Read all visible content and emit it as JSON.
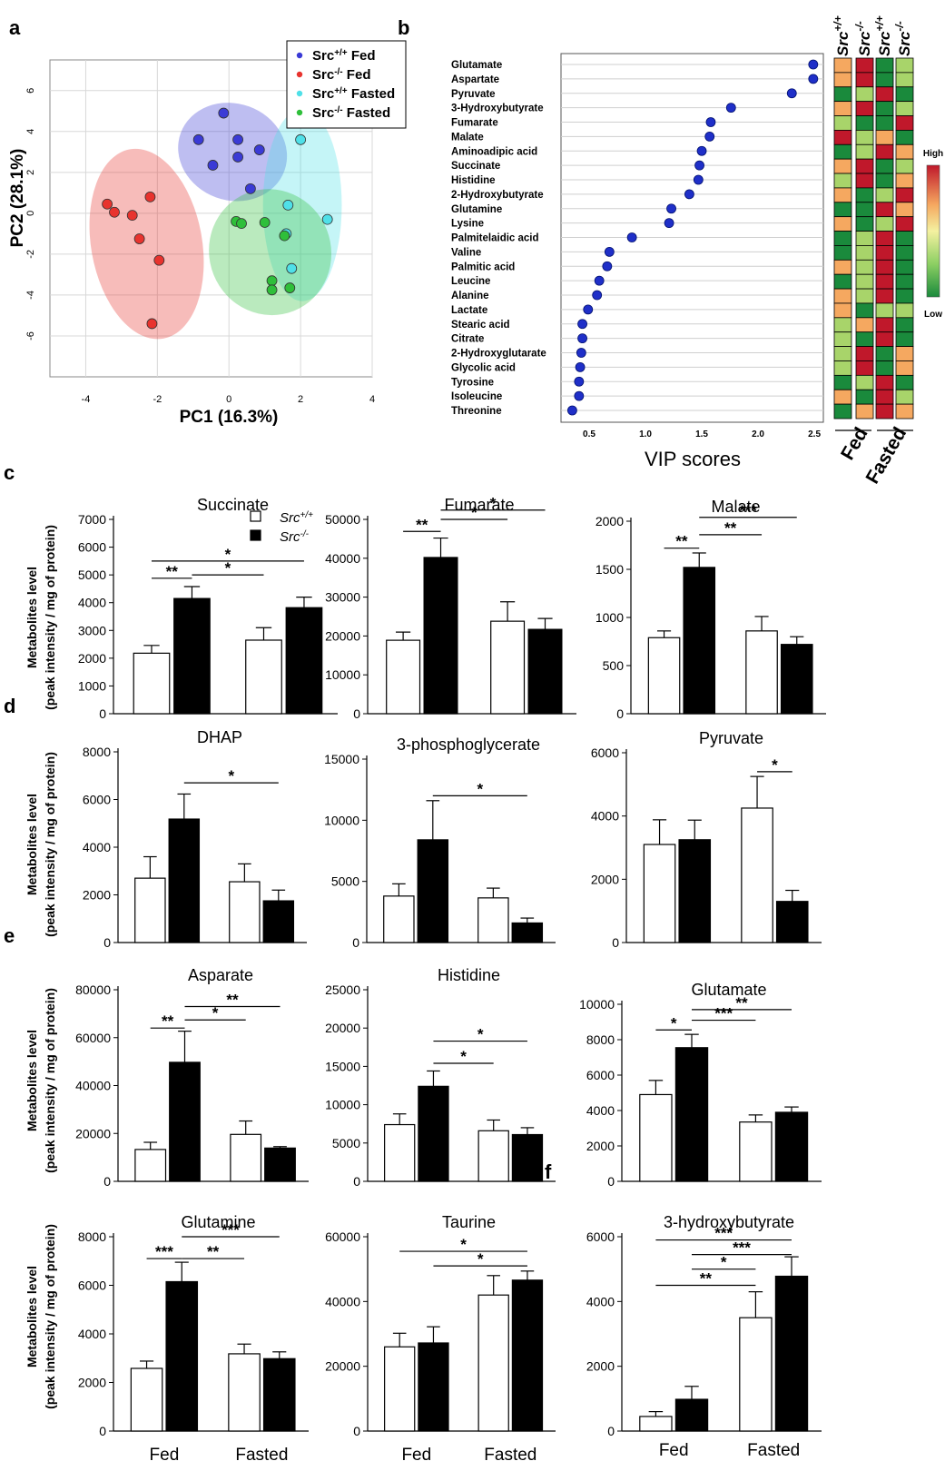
{
  "panel_labels": {
    "a": "a",
    "b": "b",
    "c": "c",
    "d": "d",
    "e": "e",
    "f": "f"
  },
  "colors": {
    "fed_wt": "#3a3ad6",
    "fed_ko": "#e8332e",
    "fasted_wt": "#4fe0e8",
    "fasted_ko": "#2fbf3a",
    "vip": "#1f2fc8",
    "bar_ko": "#000000",
    "bar_wt": "#ffffff"
  },
  "bar_legend": {
    "wt": "Src+/+",
    "ko": "Src-/-"
  },
  "ylabel_line1": "Metabolites  level",
  "ylabel_line2": "(peak intensity / mg of protein)",
  "group_labels": [
    "Fed",
    "Fasted"
  ],
  "chart_data": [
    {
      "id": "pca",
      "type": "scatter",
      "xlabel": "PC1 (16.3%)",
      "ylabel": "PC2 (28.1%)",
      "xlim": [
        -5,
        4
      ],
      "ylim": [
        -8,
        7.5
      ],
      "xticks": [
        -4,
        -2,
        0,
        2,
        4
      ],
      "yticks": [
        6,
        4,
        2,
        0,
        -2,
        -4,
        -6
      ],
      "grid": true,
      "legend_position": "top-right",
      "series": [
        {
          "name": "Src+/+ Fed",
          "color": "#3a3ad6",
          "points": [
            [
              -0.85,
              3.6
            ],
            [
              -0.15,
              4.9
            ],
            [
              0.25,
              3.6
            ],
            [
              0.85,
              3.1
            ],
            [
              -0.45,
              2.35
            ],
            [
              0.25,
              2.75
            ],
            [
              0.6,
              1.2
            ]
          ]
        },
        {
          "name": "Src-/- Fed",
          "color": "#e8332e",
          "points": [
            [
              -3.4,
              0.45
            ],
            [
              -3.2,
              0.05
            ],
            [
              -2.7,
              -0.1
            ],
            [
              -2.5,
              -1.25
            ],
            [
              -2.2,
              0.8
            ],
            [
              -1.95,
              -2.3
            ],
            [
              -2.15,
              -5.4
            ]
          ]
        },
        {
          "name": "Src+/+ Fasted",
          "color": "#4fe0e8",
          "points": [
            [
              2.0,
              3.6
            ],
            [
              1.65,
              0.4
            ],
            [
              2.75,
              -0.3
            ],
            [
              1.6,
              -1.0
            ],
            [
              1.75,
              -2.7
            ]
          ]
        },
        {
          "name": "Src-/- Fasted",
          "color": "#2fbf3a",
          "points": [
            [
              0.2,
              -0.4
            ],
            [
              0.35,
              -0.5
            ],
            [
              1.0,
              -0.45
            ],
            [
              1.55,
              -1.1
            ],
            [
              1.2,
              -3.3
            ],
            [
              1.2,
              -3.75
            ],
            [
              1.7,
              -3.65
            ]
          ]
        }
      ],
      "ellipses": [
        {
          "series": "Src+/+ Fed",
          "cx": 0.1,
          "cy": 3.0,
          "rx": 1.35,
          "ry": 2.7,
          "angle": -70
        },
        {
          "series": "Src-/- Fed",
          "cx": -2.3,
          "cy": -1.5,
          "rx": 1.55,
          "ry": 4.7,
          "angle": -10
        },
        {
          "series": "Src+/+ Fasted",
          "cx": 2.05,
          "cy": 0.4,
          "rx": 1.1,
          "ry": 4.7,
          "angle": 0
        },
        {
          "series": "Src-/- Fasted",
          "cx": 1.15,
          "cy": -1.9,
          "rx": 1.7,
          "ry": 3.1,
          "angle": -22
        }
      ]
    },
    {
      "id": "vip",
      "type": "scatter",
      "xlabel": "VIP scores",
      "xlim": [
        0.25,
        2.58
      ],
      "xticks": [
        0.5,
        1.0,
        1.5,
        2.0,
        2.5
      ],
      "xticklabels": [
        "0.5",
        "1.0",
        "1.5",
        "2.0",
        "2.5"
      ],
      "categories": [
        "Glutamate",
        "Aspartate",
        "Pyruvate",
        "3-Hydroxybutyrate",
        "Fumarate",
        "Malate",
        "Aminoadipic acid",
        "Succinate",
        "Histidine",
        "2-Hydroxybutyrate",
        "Glutamine",
        "Lysine",
        "Palmitelaidic acid",
        "Valine",
        "Palmitic acid",
        "Leucine",
        "Alanine",
        "Lactate",
        "Stearic acid",
        "Citrate",
        "2-Hydroxyglutarate",
        "Glycolic acid",
        "Tyrosine",
        "Isoleucine",
        "Threonine"
      ],
      "values": [
        2.49,
        2.49,
        2.3,
        1.76,
        1.58,
        1.57,
        1.5,
        1.48,
        1.47,
        1.39,
        1.23,
        1.21,
        0.88,
        0.68,
        0.66,
        0.59,
        0.57,
        0.49,
        0.44,
        0.44,
        0.43,
        0.42,
        0.41,
        0.41,
        0.35
      ]
    },
    {
      "id": "heatmap",
      "type": "heatmap",
      "columns": [
        "Src+/+",
        "Src-/-",
        "Src+/+",
        "Src-/-"
      ],
      "column_groups": [
        "Fed",
        "Fasted"
      ],
      "legend_high": "High",
      "legend_low": "Low",
      "palette": {
        "R": "#c0182b",
        "O": "#f5a860",
        "L": "#a8d46a",
        "G": "#1a8a3c",
        "l": "#c9e58a"
      },
      "cells": [
        [
          "O",
          "R",
          "G",
          "L"
        ],
        [
          "O",
          "R",
          "G",
          "L"
        ],
        [
          "G",
          "L",
          "R",
          "G"
        ],
        [
          "O",
          "R",
          "G",
          "L"
        ],
        [
          "L",
          "G",
          "G",
          "R"
        ],
        [
          "R",
          "L",
          "O",
          "G"
        ],
        [
          "G",
          "L",
          "R",
          "O"
        ],
        [
          "O",
          "R",
          "G",
          "L"
        ],
        [
          "L",
          "R",
          "G",
          "O"
        ],
        [
          "O",
          "G",
          "L",
          "R"
        ],
        [
          "G",
          "G",
          "R",
          "O"
        ],
        [
          "O",
          "G",
          "L",
          "R"
        ],
        [
          "G",
          "L",
          "R",
          "G"
        ],
        [
          "G",
          "L",
          "R",
          "G"
        ],
        [
          "O",
          "L",
          "R",
          "G"
        ],
        [
          "G",
          "L",
          "R",
          "G"
        ],
        [
          "O",
          "L",
          "R",
          "G"
        ],
        [
          "O",
          "G",
          "L",
          "L"
        ],
        [
          "L",
          "O",
          "R",
          "G"
        ],
        [
          "L",
          "G",
          "R",
          "G"
        ],
        [
          "L",
          "R",
          "G",
          "O"
        ],
        [
          "L",
          "R",
          "G",
          "O"
        ],
        [
          "G",
          "L",
          "R",
          "G"
        ],
        [
          "O",
          "G",
          "R",
          "L"
        ],
        [
          "G",
          "O",
          "R",
          "O"
        ]
      ]
    },
    {
      "id": "succinate",
      "type": "bar",
      "title": "Succinate",
      "categories": [
        "Fed",
        "Fasted"
      ],
      "series": [
        {
          "name": "Src+/+",
          "values": [
            2180,
            2650
          ],
          "errors": [
            280,
            450
          ]
        },
        {
          "name": "Src-/-",
          "values": [
            4150,
            3820
          ],
          "errors": [
            430,
            380
          ]
        }
      ],
      "ylim": [
        0,
        7000
      ],
      "yticks": [
        0,
        1000,
        2000,
        3000,
        4000,
        5000,
        6000,
        7000
      ],
      "sig": [
        {
          "from": "fed_wt",
          "to": "fed_ko",
          "label": "**",
          "y": 4880
        },
        {
          "from": "fed_ko",
          "to": "fas_wt",
          "label": "*",
          "y": 5000
        },
        {
          "from": "fed_wt",
          "to": "fas_ko",
          "label": "*",
          "y": 5500
        }
      ]
    },
    {
      "id": "fumarate",
      "type": "bar",
      "title": "Fumarate",
      "categories": [
        "Fed",
        "Fasted"
      ],
      "series": [
        {
          "name": "Src+/+",
          "values": [
            18900,
            23800
          ],
          "errors": [
            2100,
            5000
          ]
        },
        {
          "name": "Src-/-",
          "values": [
            40200,
            21700
          ],
          "errors": [
            5000,
            2800
          ]
        }
      ],
      "ylim": [
        0,
        50000
      ],
      "yticks": [
        0,
        10000,
        20000,
        30000,
        40000,
        50000
      ],
      "sig": [
        {
          "from": "fed_wt",
          "to": "fed_ko",
          "label": "**",
          "y": 46900
        },
        {
          "from": "fed_ko",
          "to": "fas_wt",
          "label": "*",
          "y": 50000
        },
        {
          "from": "fed_ko",
          "to": "fas_ko",
          "label": "*",
          "y": 52400
        }
      ]
    },
    {
      "id": "malate",
      "type": "bar",
      "title": "Malate",
      "categories": [
        "Fed",
        "Fasted"
      ],
      "series": [
        {
          "name": "Src+/+",
          "values": [
            790,
            860
          ],
          "errors": [
            70,
            150
          ]
        },
        {
          "name": "Src-/-",
          "values": [
            1520,
            720
          ],
          "errors": [
            150,
            80
          ]
        }
      ],
      "ylim": [
        0,
        2000
      ],
      "yticks": [
        0,
        500,
        1000,
        1500,
        2000
      ],
      "sig": [
        {
          "from": "fed_wt",
          "to": "fed_ko",
          "label": "**",
          "y": 1720
        },
        {
          "from": "fed_ko",
          "to": "fas_wt",
          "label": "**",
          "y": 1860
        },
        {
          "from": "fed_ko",
          "to": "fas_ko",
          "label": "***",
          "y": 2040
        }
      ]
    },
    {
      "id": "dhap",
      "type": "bar",
      "title": "DHAP",
      "categories": [
        "Fed",
        "Fasted"
      ],
      "series": [
        {
          "name": "Src+/+",
          "values": [
            2700,
            2550
          ],
          "errors": [
            900,
            750
          ]
        },
        {
          "name": "Src-/-",
          "values": [
            5180,
            1750
          ],
          "errors": [
            1050,
            450
          ]
        }
      ],
      "ylim": [
        0,
        8000
      ],
      "yticks": [
        0,
        2000,
        4000,
        6000,
        8000
      ],
      "sig": [
        {
          "from": "fed_ko",
          "to": "fas_ko",
          "label": "*",
          "y": 6700
        }
      ]
    },
    {
      "id": "3pg",
      "type": "bar",
      "title": "3-phosphoglycerate",
      "categories": [
        "Fed",
        "Fasted"
      ],
      "series": [
        {
          "name": "Src+/+",
          "values": [
            3800,
            3650
          ],
          "errors": [
            1000,
            800
          ]
        },
        {
          "name": "Src-/-",
          "values": [
            8400,
            1600
          ],
          "errors": [
            3200,
            400
          ]
        }
      ],
      "ylim": [
        0,
        15000
      ],
      "yticks": [
        0,
        5000,
        10000,
        15000
      ],
      "sig": [
        {
          "from": "fed_ko",
          "to": "fas_ko",
          "label": "*",
          "y": 12000
        }
      ]
    },
    {
      "id": "pyruvate",
      "type": "bar",
      "title": "Pyruvate",
      "categories": [
        "Fed",
        "Fasted"
      ],
      "series": [
        {
          "name": "Src+/+",
          "values": [
            3100,
            4250
          ],
          "errors": [
            780,
            1000
          ]
        },
        {
          "name": "Src-/-",
          "values": [
            3250,
            1300
          ],
          "errors": [
            620,
            350
          ]
        }
      ],
      "ylim": [
        0,
        6000
      ],
      "yticks": [
        0,
        2000,
        4000,
        6000
      ],
      "sig": [
        {
          "from": "fas_wt",
          "to": "fas_ko",
          "label": "*",
          "y": 5400
        }
      ]
    },
    {
      "id": "asparate",
      "type": "bar",
      "title": "Asparate",
      "categories": [
        "Fed",
        "Fasted"
      ],
      "series": [
        {
          "name": "Src+/+",
          "values": [
            13300,
            19600
          ],
          "errors": [
            3000,
            5600
          ]
        },
        {
          "name": "Src-/-",
          "values": [
            49700,
            13900
          ],
          "errors": [
            13000,
            600
          ]
        }
      ],
      "ylim": [
        0,
        80000
      ],
      "yticks": [
        0,
        20000,
        40000,
        60000,
        80000
      ],
      "sig": [
        {
          "from": "fed_wt",
          "to": "fed_ko",
          "label": "**",
          "y": 64000
        },
        {
          "from": "fed_ko",
          "to": "fas_wt",
          "label": "*",
          "y": 67400
        },
        {
          "from": "fed_ko",
          "to": "fas_ko",
          "label": "**",
          "y": 73000
        }
      ]
    },
    {
      "id": "histidine",
      "type": "bar",
      "title": "Histidine",
      "categories": [
        "Fed",
        "Fasted"
      ],
      "series": [
        {
          "name": "Src+/+",
          "values": [
            7400,
            6600
          ],
          "errors": [
            1400,
            1400
          ]
        },
        {
          "name": "Src-/-",
          "values": [
            12400,
            6100
          ],
          "errors": [
            2000,
            900
          ]
        }
      ],
      "ylim": [
        0,
        25000
      ],
      "yticks": [
        0,
        5000,
        10000,
        15000,
        20000,
        25000
      ],
      "sig": [
        {
          "from": "fed_ko",
          "to": "fas_wt",
          "label": "*",
          "y": 15400
        },
        {
          "from": "fed_ko",
          "to": "fas_ko",
          "label": "*",
          "y": 18300
        }
      ]
    },
    {
      "id": "glutamate",
      "type": "bar",
      "title": "Glutamate",
      "categories": [
        "Fed",
        "Fasted"
      ],
      "series": [
        {
          "name": "Src+/+",
          "values": [
            4900,
            3350
          ],
          "errors": [
            800,
            400
          ]
        },
        {
          "name": "Src-/-",
          "values": [
            7550,
            3900
          ],
          "errors": [
            750,
            300
          ]
        }
      ],
      "ylim": [
        0,
        10000
      ],
      "yticks": [
        0,
        2000,
        4000,
        6000,
        8000,
        10000
      ],
      "sig": [
        {
          "from": "fed_wt",
          "to": "fed_ko",
          "label": "*",
          "y": 8550
        },
        {
          "from": "fed_ko",
          "to": "fas_wt",
          "label": "***",
          "y": 9100
        },
        {
          "from": "fed_ko",
          "to": "fas_ko",
          "label": "**",
          "y": 9700
        }
      ]
    },
    {
      "id": "glutamine",
      "type": "bar",
      "title": "Glutamine",
      "categories": [
        "Fed",
        "Fasted"
      ],
      "series": [
        {
          "name": "Src+/+",
          "values": [
            2580,
            3180
          ],
          "errors": [
            300,
            400
          ]
        },
        {
          "name": "Src-/-",
          "values": [
            6150,
            2980
          ],
          "errors": [
            800,
            280
          ]
        }
      ],
      "ylim": [
        0,
        8000
      ],
      "yticks": [
        0,
        2000,
        4000,
        6000,
        8000
      ],
      "sig": [
        {
          "from": "fed_wt",
          "to": "fed_ko",
          "label": "***",
          "y": 7100
        },
        {
          "from": "fed_ko",
          "to": "fas_wt",
          "label": "**",
          "y": 7100
        },
        {
          "from": "fed_ko",
          "to": "fas_ko",
          "label": "***",
          "y": 8000
        }
      ]
    },
    {
      "id": "taurine",
      "type": "bar",
      "title": "Taurine",
      "categories": [
        "Fed",
        "Fasted"
      ],
      "series": [
        {
          "name": "Src+/+",
          "values": [
            26000,
            42000
          ],
          "errors": [
            4200,
            6000
          ]
        },
        {
          "name": "Src-/-",
          "values": [
            27200,
            46600
          ],
          "errors": [
            5000,
            2800
          ]
        }
      ],
      "ylim": [
        0,
        60000
      ],
      "yticks": [
        0,
        20000,
        40000,
        60000
      ],
      "sig": [
        {
          "from": "fed_ko",
          "to": "fas_ko",
          "label": "*",
          "y": 51000
        },
        {
          "from": "fed_wt",
          "to": "fas_ko",
          "label": "*",
          "y": 55500
        }
      ]
    },
    {
      "id": "hydroxybutyrate",
      "type": "bar",
      "title": "3-hydroxybutyrate",
      "categories": [
        "Fed",
        "Fasted"
      ],
      "series": [
        {
          "name": "Src+/+",
          "values": [
            450,
            3500
          ],
          "errors": [
            150,
            800
          ]
        },
        {
          "name": "Src-/-",
          "values": [
            980,
            4780
          ],
          "errors": [
            400,
            600
          ]
        }
      ],
      "ylim": [
        0,
        6000
      ],
      "yticks": [
        0,
        2000,
        4000,
        6000
      ],
      "sig": [
        {
          "from": "fed_wt",
          "to": "fas_wt",
          "label": "**",
          "y": 4500
        },
        {
          "from": "fed_ko",
          "to": "fas_wt",
          "label": "*",
          "y": 5000
        },
        {
          "from": "fed_ko",
          "to": "fas_ko",
          "label": "***",
          "y": 5450
        },
        {
          "from": "fed_wt",
          "to": "fas_ko",
          "label": "***",
          "y": 5900
        }
      ]
    }
  ]
}
